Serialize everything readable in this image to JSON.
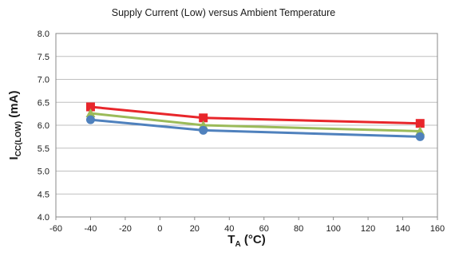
{
  "chart_data": {
    "type": "line",
    "title": "Supply Current (Low) versus Ambient Temperature",
    "xlabel": {
      "main": "T",
      "sub": "A",
      "suffix": " (°C)"
    },
    "ylabel": {
      "main": "I",
      "sub": "CC(LOW)",
      "suffix": " (mA)"
    },
    "xlim": [
      -60,
      160
    ],
    "ylim": [
      4.0,
      8.0
    ],
    "xticks": [
      -60,
      -40,
      -20,
      0,
      20,
      40,
      60,
      80,
      100,
      120,
      140,
      160
    ],
    "yticks": [
      "4.0",
      "4.5",
      "5.0",
      "5.5",
      "6.0",
      "6.5",
      "7.0",
      "7.5",
      "8.0"
    ],
    "grid": "horizontal",
    "legend": "none",
    "series": [
      {
        "color": "#e8262b",
        "marker": "square",
        "x": [
          -40,
          25,
          150
        ],
        "values": [
          6.4,
          6.16,
          6.04
        ]
      },
      {
        "color": "#9bbb59",
        "marker": "triangle",
        "x": [
          -40,
          25,
          150
        ],
        "values": [
          6.26,
          6.0,
          5.87
        ]
      },
      {
        "color": "#4f81bd",
        "marker": "circle",
        "x": [
          -40,
          25,
          150
        ],
        "values": [
          6.12,
          5.89,
          5.75
        ]
      }
    ]
  }
}
